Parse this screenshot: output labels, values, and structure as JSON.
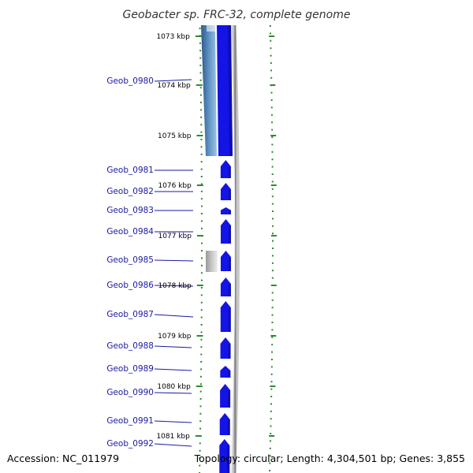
{
  "title": "Geobacter sp. FRC-32, complete genome",
  "accession": "Accession: NC_011979",
  "topology": "Topology: circular; Length: 4,304,501 bp; Genes: 3,855",
  "kbp_labels": [
    "1073 kbp",
    "1074 kbp",
    "1075 kbp",
    "1076 kbp",
    "1077 kbp",
    "1078 kbp",
    "1079 kbp",
    "1080 kbp",
    "1081 kbp"
  ],
  "genes": [
    "Geob_0980",
    "Geob_0981",
    "Geob_0982",
    "Geob_0983",
    "Geob_0984",
    "Geob_0985",
    "Geob_0986",
    "Geob_0987",
    "Geob_0988",
    "Geob_0989",
    "Geob_0990",
    "Geob_0991",
    "Geob_0992"
  ],
  "colors": {
    "gene": "#1414e6",
    "label": "#1a1aa6",
    "tick": "#2e8b2e",
    "backbone": "#888888",
    "feature_blue": "#4a7fb0",
    "feature_gray": "#b0b0b0"
  }
}
